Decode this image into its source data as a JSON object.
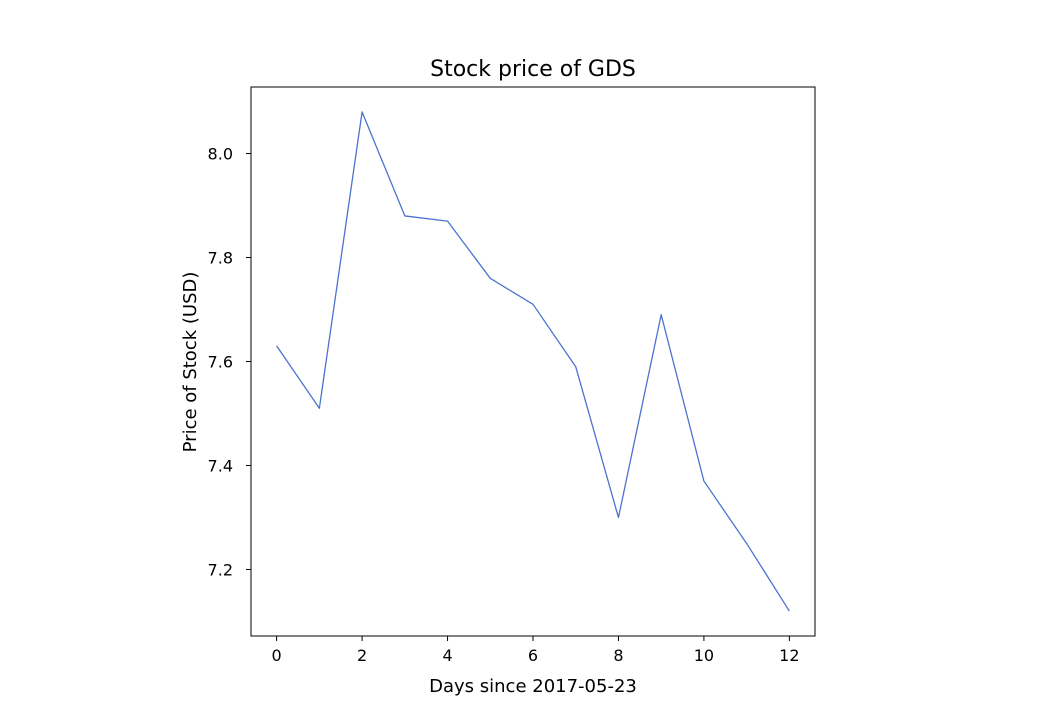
{
  "chart_data": {
    "type": "line",
    "title": "Stock price of GDS",
    "xlabel": "Days since 2017-05-23",
    "ylabel": "Price of Stock (USD)",
    "x": [
      0,
      1,
      2,
      3,
      4,
      5,
      6,
      7,
      8,
      9,
      10,
      11,
      12
    ],
    "series": [
      {
        "name": "GDS",
        "color": "#4c72d0",
        "values": [
          7.63,
          7.51,
          8.08,
          7.88,
          7.87,
          7.76,
          7.71,
          7.59,
          7.3,
          7.69,
          7.37,
          7.25,
          7.12
        ]
      }
    ],
    "xlim": [
      -0.6,
      12.6
    ],
    "ylim": [
      7.072,
      8.128
    ],
    "xticks": [
      0,
      2,
      4,
      6,
      8,
      10,
      12
    ],
    "xtick_labels": [
      "0",
      "2",
      "4",
      "6",
      "8",
      "10",
      "12"
    ],
    "yticks": [
      7.2,
      7.4,
      7.6,
      7.8,
      8.0
    ],
    "ytick_labels": [
      "7.2",
      "7.4",
      "7.6",
      "7.8",
      "8.0"
    ],
    "grid": false,
    "legend": false
  }
}
